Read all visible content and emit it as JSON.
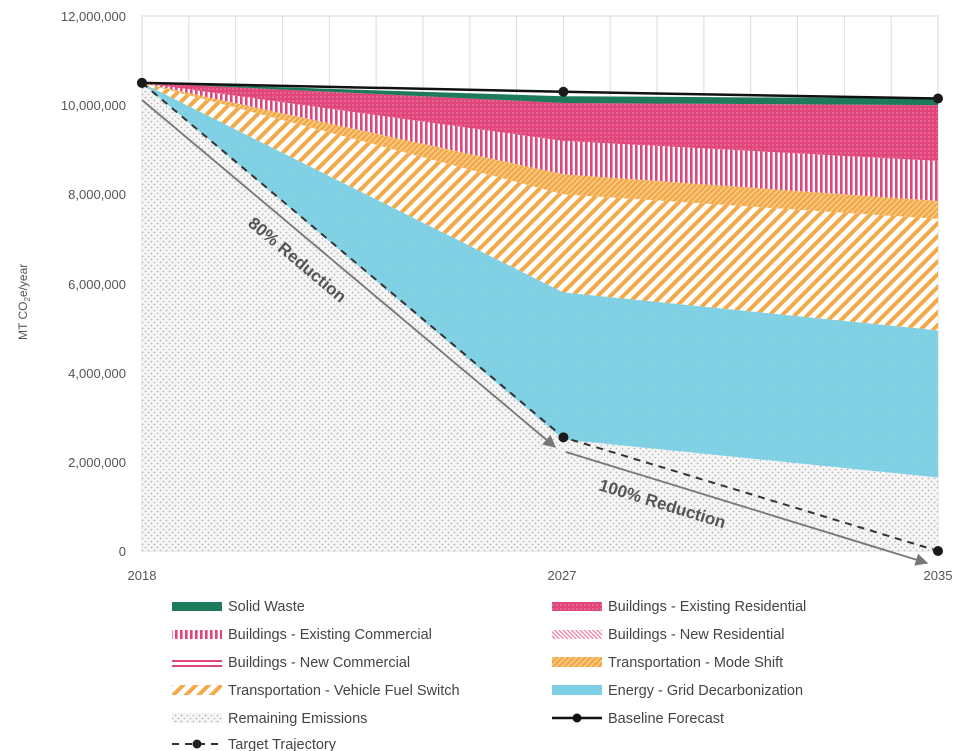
{
  "chart_data": {
    "type": "area",
    "x": [
      2018,
      2027,
      2035
    ],
    "x_tick_labels": [
      "2018",
      "2027",
      "2035"
    ],
    "ylabel": "MT CO",
    "ylabel_sub": "2",
    "ylabel_suffix": "e/year",
    "ylim": [
      0,
      12000000
    ],
    "y_ticks": [
      0,
      2000000,
      4000000,
      6000000,
      8000000,
      10000000,
      12000000
    ],
    "y_tick_labels": [
      "0",
      "2,000,000",
      "4,000,000",
      "6,000,000",
      "8,000,000",
      "10,000,000",
      "12,000,000"
    ],
    "grid": "vertical",
    "legend_position": "bottom",
    "series": [
      {
        "name": "Remaining Emissions",
        "values": [
          10500000,
          2500000,
          1650000
        ],
        "color": "#e6e6e6",
        "pattern": "dots"
      },
      {
        "name": "Energy - Grid Decarbonization",
        "values": [
          0,
          3300000,
          3300000
        ],
        "color": "#7dcfe3",
        "pattern": "solid"
      },
      {
        "name": "Transportation - Vehicle Fuel Switch",
        "values": [
          0,
          2200000,
          2500000
        ],
        "color": "#f3a948",
        "pattern": "diagonal"
      },
      {
        "name": "Transportation - Mode Shift",
        "values": [
          0,
          450000,
          400000
        ],
        "color": "#f3a948",
        "pattern": "crosshatch"
      },
      {
        "name": "Buildings - New Commercial",
        "values": [
          0,
          0,
          0
        ],
        "color": "#e0457b",
        "pattern": "horizontal"
      },
      {
        "name": "Buildings - New Residential",
        "values": [
          0,
          0,
          0
        ],
        "color": "#f2a3bf",
        "pattern": "fine-diagonal"
      },
      {
        "name": "Buildings - Existing Commercial",
        "values": [
          0,
          750000,
          900000
        ],
        "color": "#e0457b",
        "pattern": "vertical"
      },
      {
        "name": "Buildings - Existing Residential",
        "values": [
          0,
          850000,
          1250000
        ],
        "color": "#e0457b",
        "pattern": "dense-dots"
      },
      {
        "name": "Solid Waste",
        "values": [
          0,
          150000,
          150000
        ],
        "color": "#1d7a5a",
        "pattern": "solid"
      }
    ],
    "lines": [
      {
        "name": "Baseline Forecast",
        "values": [
          10500000,
          10300000,
          10150000
        ],
        "color": "#111111",
        "style": "solid"
      },
      {
        "name": "Target Trajectory",
        "values": [
          10500000,
          2550000,
          0
        ],
        "color": "#333333",
        "style": "dashed"
      }
    ],
    "annotations": [
      {
        "text": "80% Reduction"
      },
      {
        "text": "100% Reduction"
      }
    ],
    "legend": [
      {
        "label": "Solid Waste",
        "series": "Solid Waste"
      },
      {
        "label": "Buildings - Existing Residential",
        "series": "Buildings - Existing Residential"
      },
      {
        "label": "Buildings - Existing Commercial",
        "series": "Buildings - Existing Commercial"
      },
      {
        "label": "Buildings - New Residential",
        "series": "Buildings - New Residential"
      },
      {
        "label": "Buildings - New Commercial",
        "series": "Buildings - New Commercial"
      },
      {
        "label": "Transportation - Mode Shift",
        "series": "Transportation - Mode Shift"
      },
      {
        "label": "Transportation - Vehicle Fuel Switch",
        "series": "Transportation - Vehicle Fuel Switch"
      },
      {
        "label": "Energy - Grid Decarbonization",
        "series": "Energy - Grid Decarbonization"
      },
      {
        "label": "Remaining Emissions",
        "series": "Remaining Emissions"
      },
      {
        "label": "Baseline Forecast",
        "series": "Baseline Forecast"
      },
      {
        "label": "Target Trajectory",
        "series": "Target Trajectory"
      }
    ]
  }
}
